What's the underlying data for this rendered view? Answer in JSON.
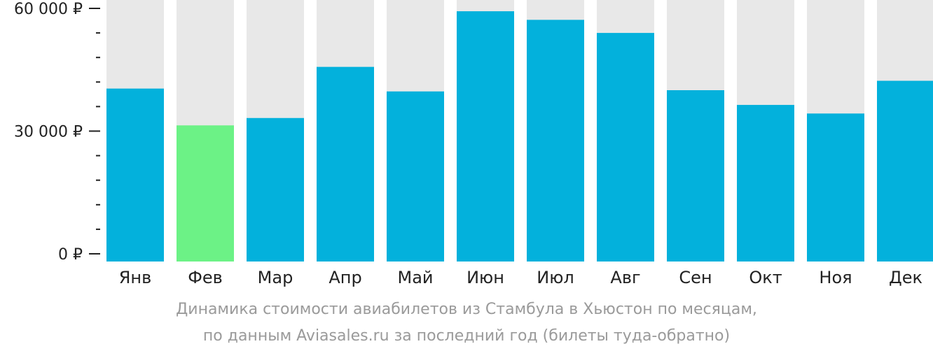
{
  "colors": {
    "bar": "#03b1dc",
    "bar_lowest": "#6cf286",
    "bar_background": "#e8e8e8",
    "axis": "#222222",
    "caption": "#9a9a9a"
  },
  "caption": {
    "line1": "Динамика стоимости авиабилетов из Стамбула в Хьюстон по месяцам,",
    "line2": "по данным Aviasales.ru за последний год (билеты туда-обратно)"
  },
  "chart_data": {
    "type": "bar",
    "title": "",
    "xlabel": "",
    "ylabel": "",
    "categories": [
      "Янв",
      "Фев",
      "Мар",
      "Апр",
      "Май",
      "Июн",
      "Июл",
      "Авг",
      "Сен",
      "Окт",
      "Ноя",
      "Дек"
    ],
    "values": [
      40400,
      31400,
      33200,
      45700,
      39700,
      59300,
      57200,
      54000,
      40000,
      36400,
      34300,
      42300
    ],
    "highlight_category": "Фев",
    "ylim": [
      0,
      62000
    ],
    "y_major_ticks": [
      {
        "value": 0,
        "label": "0 ₽"
      },
      {
        "value": 30000,
        "label": "30 000 ₽"
      },
      {
        "value": 60000,
        "label": "60 000 ₽"
      }
    ],
    "y_minor_step": 6000,
    "grid": false,
    "legend": "none"
  }
}
